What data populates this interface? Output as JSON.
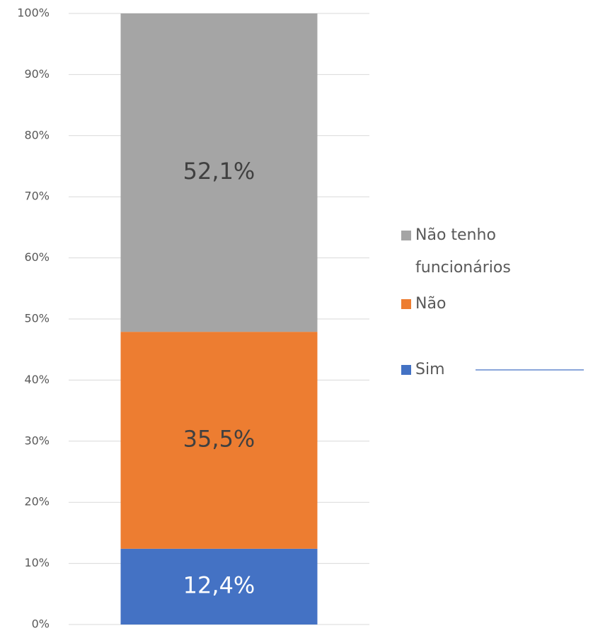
{
  "chart_data": {
    "type": "stacked_bar",
    "categories": [
      null
    ],
    "series": [
      {
        "name": "Sim",
        "color": "#4472c4",
        "values": [
          12.4
        ],
        "value_labels": [
          "12,4%"
        ]
      },
      {
        "name": "Não",
        "color": "#ed7d31",
        "values": [
          35.5
        ],
        "value_labels": [
          "35,5%"
        ]
      },
      {
        "name": "Não tenho funcionários",
        "color": "#a5a5a5",
        "values": [
          52.1
        ],
        "value_labels": [
          "52,1%"
        ]
      }
    ],
    "ylim": [
      0,
      100
    ],
    "yticks": [
      {
        "value": 0,
        "label": "0%"
      },
      {
        "value": 10,
        "label": "10%"
      },
      {
        "value": 20,
        "label": "20%"
      },
      {
        "value": 30,
        "label": "30%"
      },
      {
        "value": 40,
        "label": "40%"
      },
      {
        "value": 50,
        "label": "50%"
      },
      {
        "value": 60,
        "label": "60%"
      },
      {
        "value": 70,
        "label": "70%"
      },
      {
        "value": 80,
        "label": "80%"
      },
      {
        "value": 90,
        "label": "90%"
      },
      {
        "value": 100,
        "label": "100%"
      }
    ],
    "grid": true,
    "legend": "right"
  }
}
